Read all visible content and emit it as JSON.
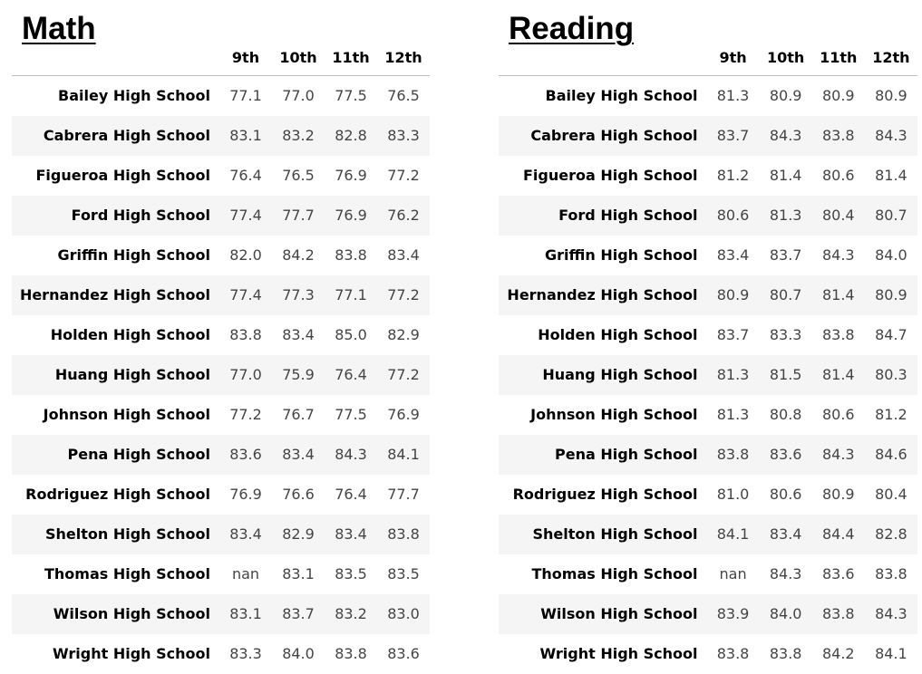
{
  "chart_data": [
    {
      "type": "table",
      "title": "Math",
      "columns": [
        "9th",
        "10th",
        "11th",
        "12th"
      ],
      "rows": [
        {
          "school": "Bailey High School",
          "values": [
            "77.1",
            "77.0",
            "77.5",
            "76.5"
          ]
        },
        {
          "school": "Cabrera High School",
          "values": [
            "83.1",
            "83.2",
            "82.8",
            "83.3"
          ]
        },
        {
          "school": "Figueroa High School",
          "values": [
            "76.4",
            "76.5",
            "76.9",
            "77.2"
          ]
        },
        {
          "school": "Ford High School",
          "values": [
            "77.4",
            "77.7",
            "76.9",
            "76.2"
          ]
        },
        {
          "school": "Griffin High School",
          "values": [
            "82.0",
            "84.2",
            "83.8",
            "83.4"
          ]
        },
        {
          "school": "Hernandez High School",
          "values": [
            "77.4",
            "77.3",
            "77.1",
            "77.2"
          ]
        },
        {
          "school": "Holden High School",
          "values": [
            "83.8",
            "83.4",
            "85.0",
            "82.9"
          ]
        },
        {
          "school": "Huang High School",
          "values": [
            "77.0",
            "75.9",
            "76.4",
            "77.2"
          ]
        },
        {
          "school": "Johnson High School",
          "values": [
            "77.2",
            "76.7",
            "77.5",
            "76.9"
          ]
        },
        {
          "school": "Pena High School",
          "values": [
            "83.6",
            "83.4",
            "84.3",
            "84.1"
          ]
        },
        {
          "school": "Rodriguez High School",
          "values": [
            "76.9",
            "76.6",
            "76.4",
            "77.7"
          ]
        },
        {
          "school": "Shelton High School",
          "values": [
            "83.4",
            "82.9",
            "83.4",
            "83.8"
          ]
        },
        {
          "school": "Thomas High School",
          "values": [
            "nan",
            "83.1",
            "83.5",
            "83.5"
          ]
        },
        {
          "school": "Wilson High School",
          "values": [
            "83.1",
            "83.7",
            "83.2",
            "83.0"
          ]
        },
        {
          "school": "Wright High School",
          "values": [
            "83.3",
            "84.0",
            "83.8",
            "83.6"
          ]
        }
      ]
    },
    {
      "type": "table",
      "title": "Reading",
      "columns": [
        "9th",
        "10th",
        "11th",
        "12th"
      ],
      "rows": [
        {
          "school": "Bailey High School",
          "values": [
            "81.3",
            "80.9",
            "80.9",
            "80.9"
          ]
        },
        {
          "school": "Cabrera High School",
          "values": [
            "83.7",
            "84.3",
            "83.8",
            "84.3"
          ]
        },
        {
          "school": "Figueroa High School",
          "values": [
            "81.2",
            "81.4",
            "80.6",
            "81.4"
          ]
        },
        {
          "school": "Ford High School",
          "values": [
            "80.6",
            "81.3",
            "80.4",
            "80.7"
          ]
        },
        {
          "school": "Griffin High School",
          "values": [
            "83.4",
            "83.7",
            "84.3",
            "84.0"
          ]
        },
        {
          "school": "Hernandez High School",
          "values": [
            "80.9",
            "80.7",
            "81.4",
            "80.9"
          ]
        },
        {
          "school": "Holden High School",
          "values": [
            "83.7",
            "83.3",
            "83.8",
            "84.7"
          ]
        },
        {
          "school": "Huang High School",
          "values": [
            "81.3",
            "81.5",
            "81.4",
            "80.3"
          ]
        },
        {
          "school": "Johnson High School",
          "values": [
            "81.3",
            "80.8",
            "80.6",
            "81.2"
          ]
        },
        {
          "school": "Pena High School",
          "values": [
            "83.8",
            "83.6",
            "84.3",
            "84.6"
          ]
        },
        {
          "school": "Rodriguez High School",
          "values": [
            "81.0",
            "80.6",
            "80.9",
            "80.4"
          ]
        },
        {
          "school": "Shelton High School",
          "values": [
            "84.1",
            "83.4",
            "84.4",
            "82.8"
          ]
        },
        {
          "school": "Thomas High School",
          "values": [
            "nan",
            "84.3",
            "83.6",
            "83.8"
          ]
        },
        {
          "school": "Wilson High School",
          "values": [
            "83.9",
            "84.0",
            "83.8",
            "84.3"
          ]
        },
        {
          "school": "Wright High School",
          "values": [
            "83.8",
            "83.8",
            "84.2",
            "84.1"
          ]
        }
      ]
    }
  ]
}
